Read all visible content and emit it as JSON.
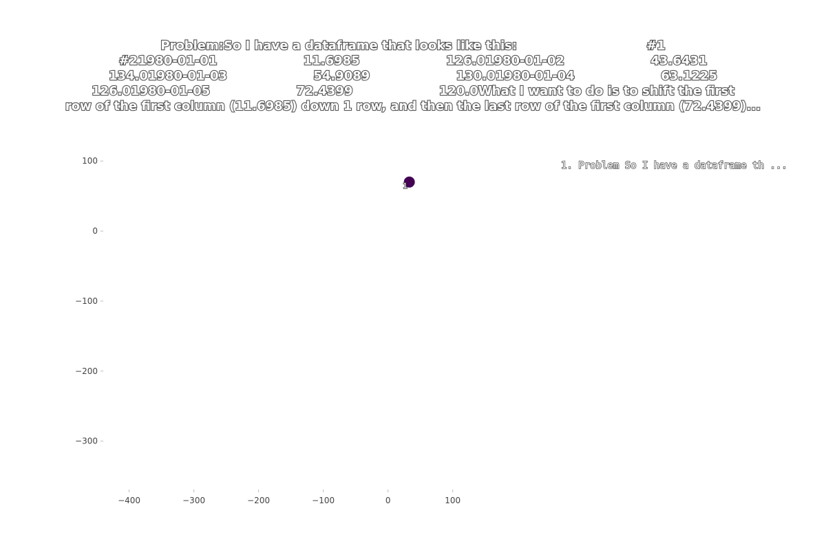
{
  "chart_data": {
    "type": "scatter",
    "title": [
      "Problem:So I have a dataframe that looks like this:                              #1",
      "#21980-01-01                    11.6985                    126.01980-01-02                    43.6431",
      "134.01980-01-03                    54.9089                    130.01980-01-04                    63.1225",
      "126.01980-01-05                    72.4399                    120.0What I want to do is to shift the first",
      "row of the first column (11.6985) down 1 row, and then the last row of the first column (72.4399)..."
    ],
    "series": [
      {
        "name": "1. Problem So I have a dataframe th ...",
        "color": "#440154",
        "x": [
          33
        ],
        "values": [
          70
        ],
        "labels": [
          "1"
        ]
      }
    ],
    "xlim": [
      -440,
      161
    ],
    "ylim": [
      -369,
      112
    ],
    "xticks": [
      {
        "value": -400,
        "label": "−400"
      },
      {
        "value": -300,
        "label": "−300"
      },
      {
        "value": -200,
        "label": "−200"
      },
      {
        "value": -100,
        "label": "−100"
      },
      0,
      100
    ],
    "yticks": [
      100,
      0,
      {
        "value": -100,
        "label": "−100"
      },
      {
        "value": -200,
        "label": "−200"
      },
      {
        "value": -300,
        "label": "−300"
      }
    ]
  }
}
